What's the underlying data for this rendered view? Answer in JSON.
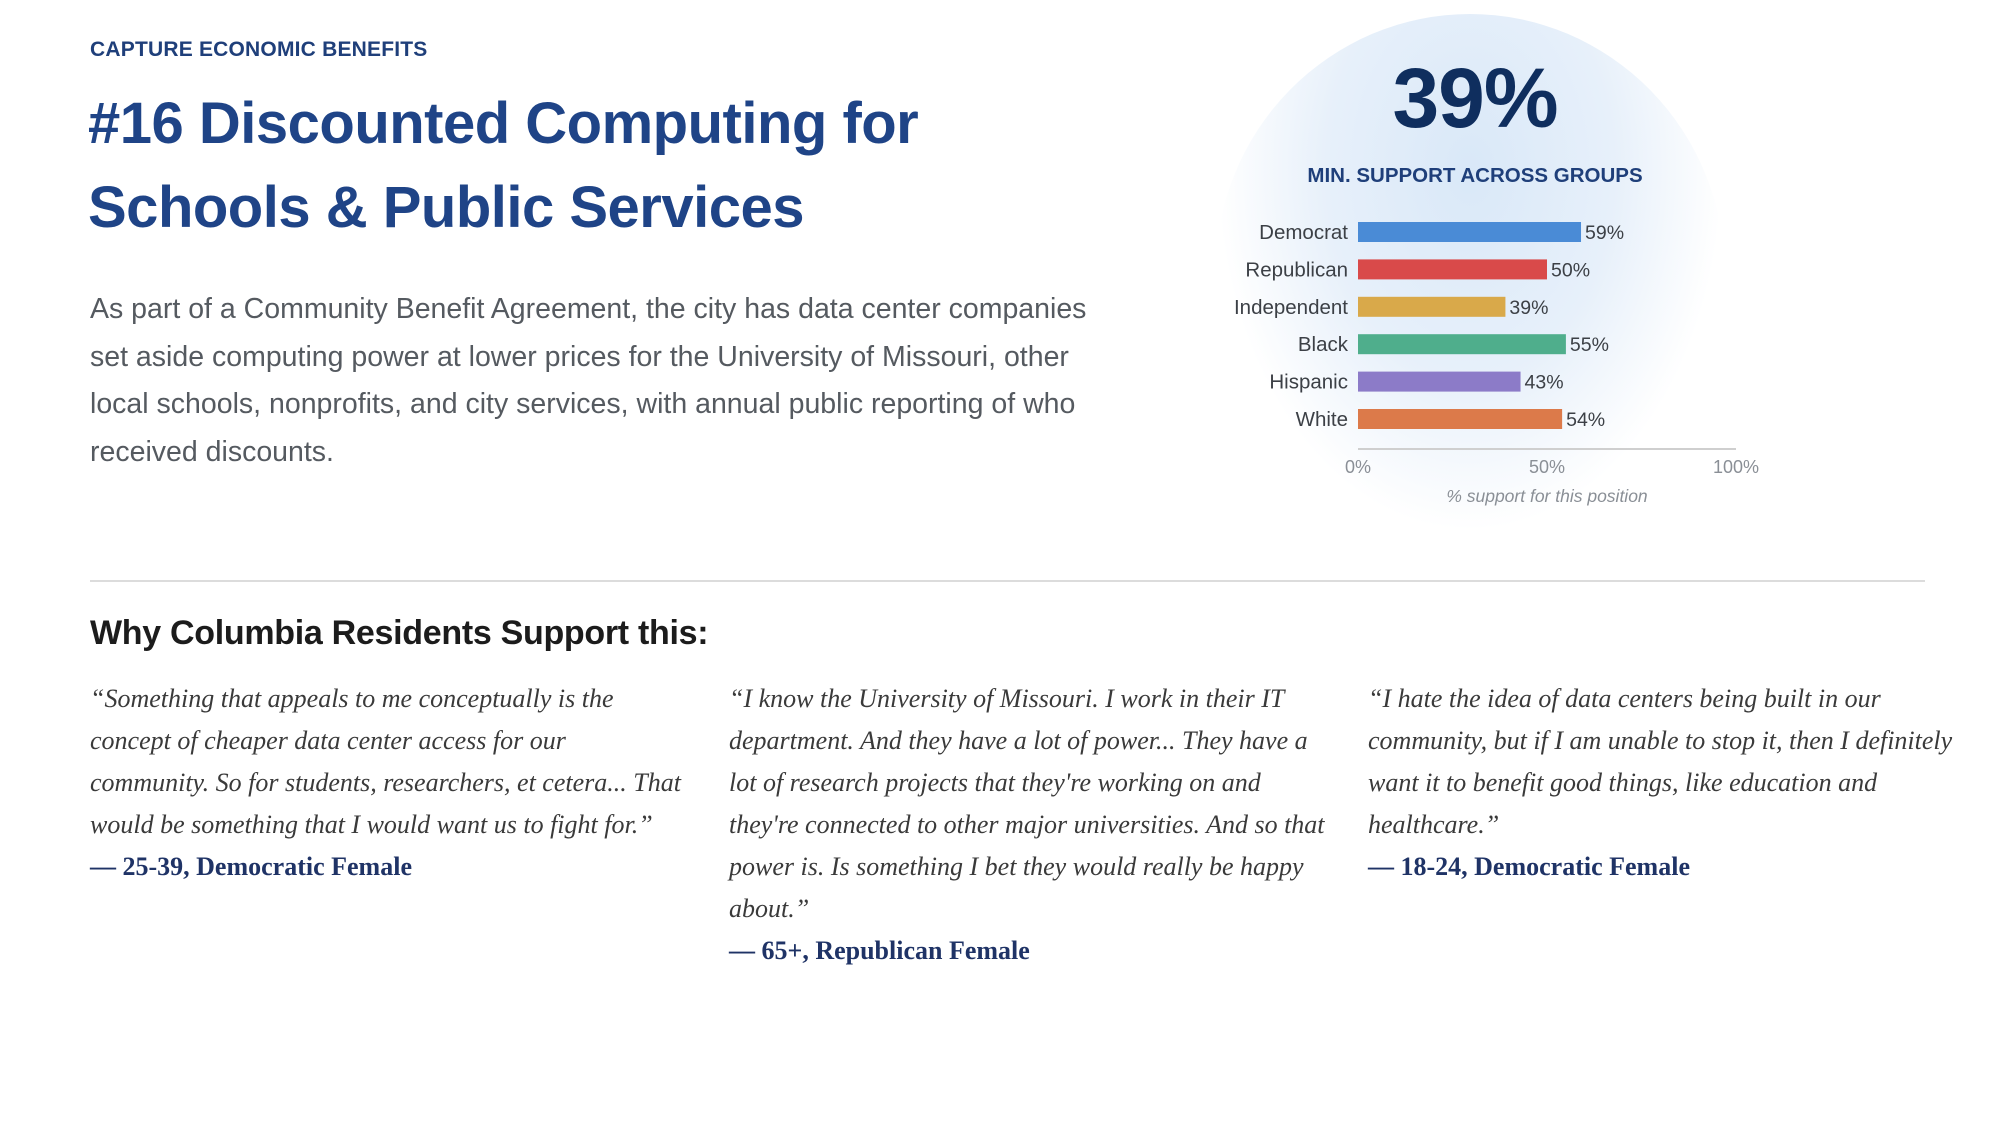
{
  "header": {
    "eyebrow": "CAPTURE ECONOMIC BENEFITS",
    "title": "#16 Discounted Computing for Schools & Public Services",
    "description": "As part of a Community Benefit Agreement, the city has data center companies set aside computing power at lower prices for the University of Missouri, other local schools, nonprofits, and city services, with annual public reporting of who received discounts."
  },
  "stat": {
    "value": "39%",
    "label": "MIN. SUPPORT ACROSS GROUPS"
  },
  "chart_data": {
    "type": "bar",
    "orientation": "horizontal",
    "categories": [
      "Democrat",
      "Republican",
      "Independent",
      "Black",
      "Hispanic",
      "White"
    ],
    "values": [
      59,
      50,
      39,
      55,
      43,
      54
    ],
    "value_labels": [
      "59%",
      "50%",
      "39%",
      "55%",
      "43%",
      "54%"
    ],
    "colors": [
      "#4a8bd6",
      "#d94a4a",
      "#d9a94a",
      "#4fae8c",
      "#8c7bc8",
      "#dc7a4a"
    ],
    "xlim": [
      0,
      100
    ],
    "x_ticks": [
      0,
      50,
      100
    ],
    "x_tick_labels": [
      "0%",
      "50%",
      "100%"
    ],
    "xlabel": "% support for this position",
    "ylabel": "",
    "title": "",
    "grid": false,
    "legend": "none"
  },
  "quotes_section": {
    "title": "Why Columbia Residents Support this:",
    "quotes": [
      {
        "text": "“Something that appeals to me conceptually is the concept of cheaper data center access for our community. So for students, researchers, et cetera... That would be something that I would want us to fight for.”",
        "attribution": "— 25-39, Democratic Female"
      },
      {
        "text": "“I know the University of Missouri. I work in their IT department. And they have a lot of power... They have a lot of research projects that they're working on and they're connected to other major universities. And so that power is. Is something I bet they would really be happy about.”",
        "attribution": "— 65+, Republican Female"
      },
      {
        "text": "“I hate the idea of data centers being built in our community, but if I am unable to stop it, then I definitely want it to benefit good things, like education and healthcare.”",
        "attribution": "— 18-24, Democratic Female"
      }
    ]
  }
}
